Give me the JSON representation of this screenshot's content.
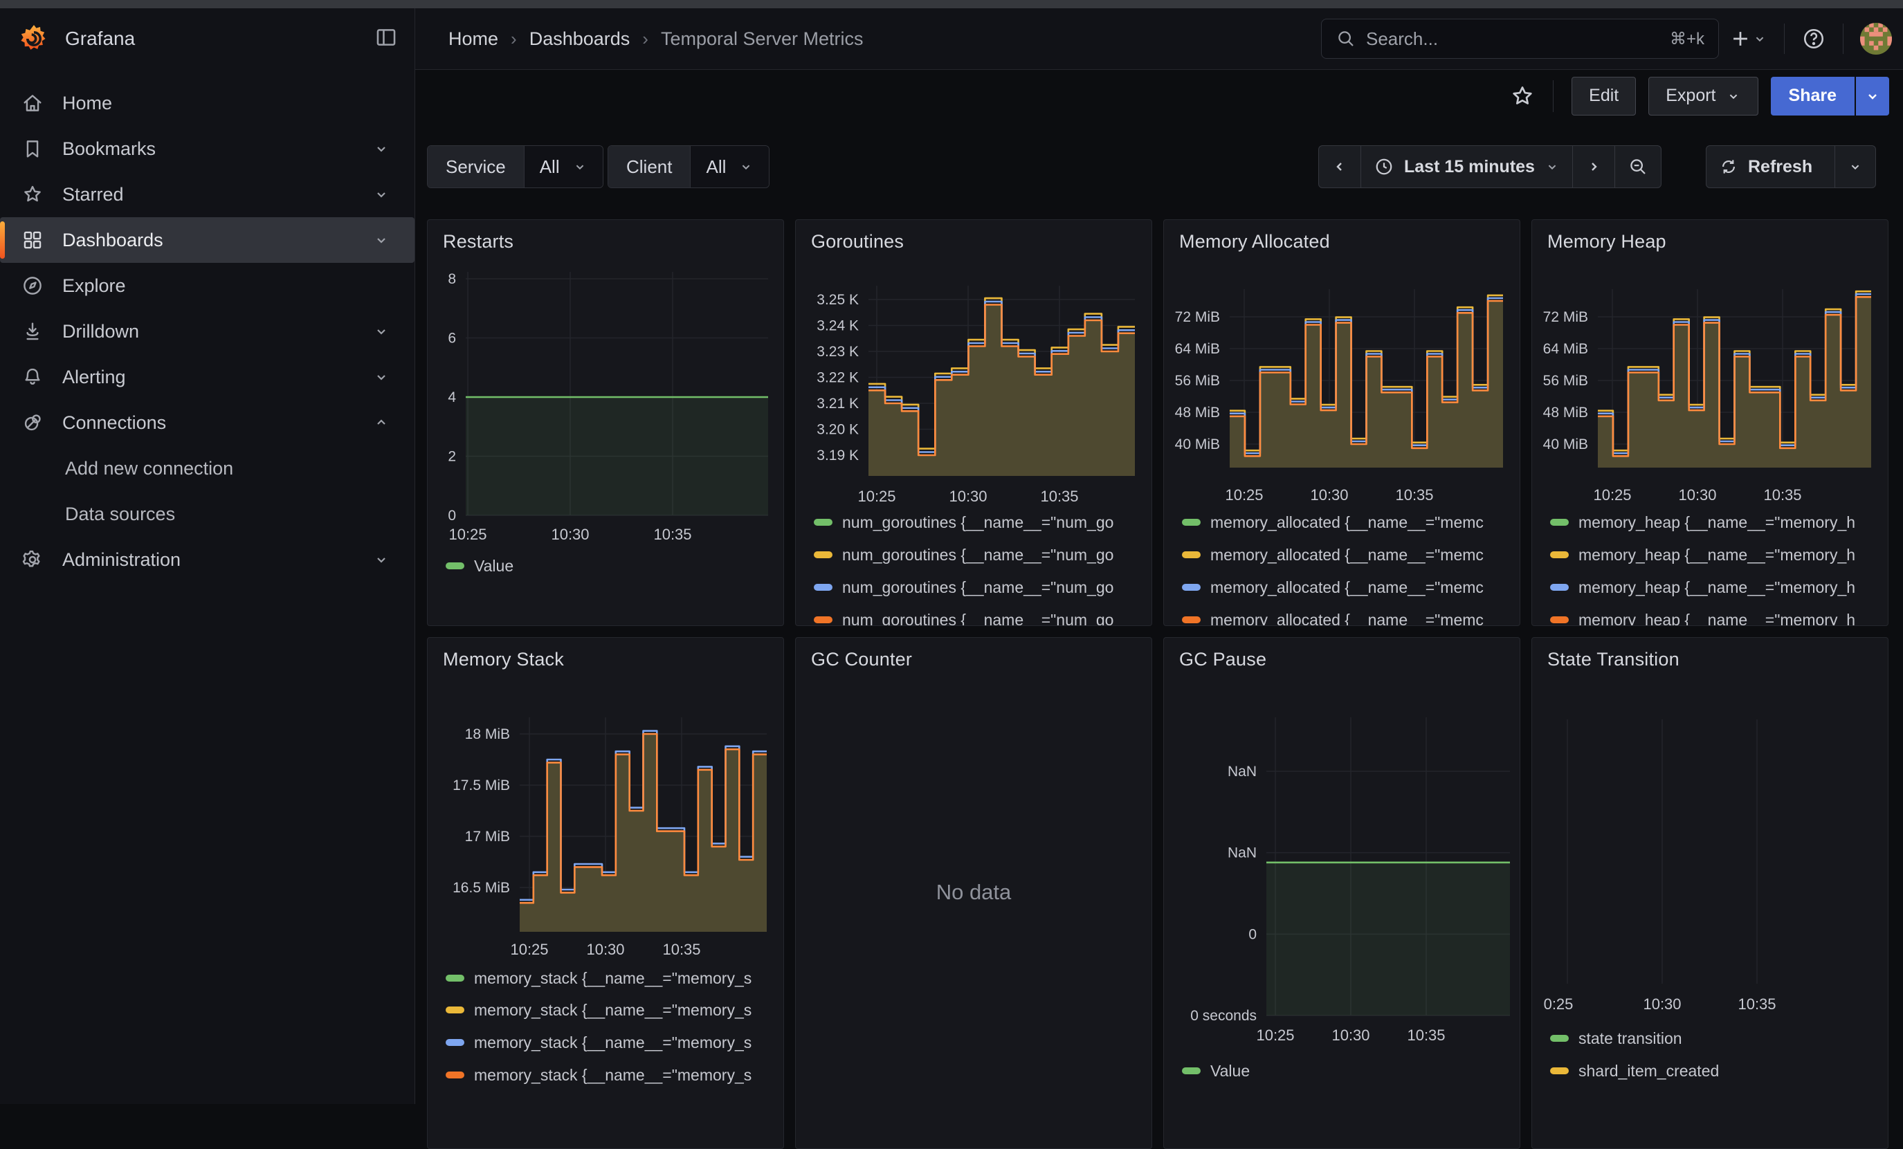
{
  "header": {
    "brand": "Grafana",
    "breadcrumb": [
      "Home",
      "Dashboards",
      "Temporal Server Metrics"
    ],
    "search": {
      "placeholder": "Search...",
      "shortcut": "⌘+k"
    },
    "icons": [
      "grafana-logo",
      "panel-toggle-icon",
      "search-icon",
      "plus-icon",
      "help-icon",
      "avatar"
    ]
  },
  "toolbar": {
    "edit": "Edit",
    "export": "Export",
    "share": "Share"
  },
  "sidebar": {
    "items": [
      {
        "label": "Home",
        "icon": "home-icon"
      },
      {
        "label": "Bookmarks",
        "icon": "bookmark-icon",
        "chevron": "down"
      },
      {
        "label": "Starred",
        "icon": "star-icon",
        "chevron": "down"
      },
      {
        "label": "Dashboards",
        "icon": "apps-icon",
        "chevron": "down",
        "active": true
      },
      {
        "label": "Explore",
        "icon": "compass-icon"
      },
      {
        "label": "Drilldown",
        "icon": "drilldown-icon",
        "chevron": "down"
      },
      {
        "label": "Alerting",
        "icon": "bell-icon",
        "chevron": "down"
      },
      {
        "label": "Connections",
        "icon": "connections-icon",
        "chevron": "up"
      },
      {
        "label": "Add new connection",
        "indent": true
      },
      {
        "label": "Data sources",
        "indent": true
      },
      {
        "label": "Administration",
        "icon": "gear-icon",
        "chevron": "down"
      }
    ]
  },
  "filters": [
    {
      "label": "Service",
      "value": "All"
    },
    {
      "label": "Client",
      "value": "All"
    }
  ],
  "timebar": {
    "range": "Last 15 minutes",
    "refresh": "Refresh"
  },
  "colors": {
    "green": "#73BF69",
    "yellow": "#EAB839",
    "blue": "#7EA6F0",
    "orange_line": "#FF8B3E",
    "orange_legend": "#F07427",
    "olive_fill": "#4E4930",
    "green_fill": "rgba(115,191,105,0.10)",
    "accent_blue": "#4669D2"
  },
  "panels": [
    {
      "id": "restarts",
      "title": "Restarts",
      "col": 0,
      "row": 0,
      "chart_data": {
        "type": "area",
        "title": "Restarts",
        "ylim": [
          0,
          8
        ],
        "x_ticks": [
          "10:25",
          "10:30",
          "10:35"
        ],
        "y_ticks": [
          {
            "v": 8,
            "label": "8"
          },
          {
            "v": 6,
            "label": "6"
          },
          {
            "v": 4,
            "label": "4"
          },
          {
            "v": 2,
            "label": "2"
          },
          {
            "v": 0,
            "label": "0"
          }
        ],
        "flat_value": 4,
        "series": [
          {
            "name": "Value",
            "color": "#73BF69"
          }
        ]
      },
      "legend": [
        {
          "color": "#73BF69",
          "label": "Value"
        }
      ]
    },
    {
      "id": "goroutines",
      "title": "Goroutines",
      "col": 1,
      "row": 0,
      "chart_data": {
        "type": "area-steps",
        "title": "Goroutines",
        "ylim": [
          3.185,
          3.255
        ],
        "x_ticks": [
          "10:25",
          "10:30",
          "10:35"
        ],
        "y_ticks": [
          {
            "v": 3.25,
            "label": "3.25 K"
          },
          {
            "v": 3.24,
            "label": "3.24 K"
          },
          {
            "v": 3.23,
            "label": "3.23 K"
          },
          {
            "v": 3.22,
            "label": "3.22 K"
          },
          {
            "v": 3.21,
            "label": "3.21 K"
          },
          {
            "v": 3.2,
            "label": "3.20 K"
          },
          {
            "v": 3.19,
            "label": "3.19 K"
          }
        ],
        "steps": [
          3.215,
          3.21,
          3.207,
          3.19,
          3.219,
          3.221,
          3.232,
          3.248,
          3.232,
          3.228,
          3.221,
          3.229,
          3.236,
          3.242,
          3.23,
          3.237
        ],
        "lines": [
          {
            "color": "#EAB839",
            "offset": 0.0025
          },
          {
            "color": "#7EA6F0",
            "offset": 0.0012
          },
          {
            "color": "#FF8B3E",
            "offset": 0
          }
        ],
        "fill": "#4E4930"
      },
      "legend": [
        {
          "color": "#73BF69",
          "label": "num_goroutines {__name__=\"num_go"
        },
        {
          "color": "#EAB839",
          "label": "num_goroutines {__name__=\"num_go"
        },
        {
          "color": "#7EA6F0",
          "label": "num_goroutines {__name__=\"num_go"
        },
        {
          "color": "#F07427",
          "label": "num_goroutines {__name__=\"num_go"
        }
      ]
    },
    {
      "id": "memalloc",
      "title": "Memory Allocated",
      "col": 2,
      "row": 0,
      "chart_data": {
        "type": "area-steps",
        "title": "Memory Allocated",
        "ylim": [
          34,
          78
        ],
        "ylabel": "MiB",
        "x_ticks": [
          "10:25",
          "10:30",
          "10:35"
        ],
        "y_ticks": [
          {
            "v": 72,
            "label": "72 MiB"
          },
          {
            "v": 64,
            "label": "64 MiB"
          },
          {
            "v": 56,
            "label": "56 MiB"
          },
          {
            "v": 48,
            "label": "48 MiB"
          },
          {
            "v": 40,
            "label": "40 MiB"
          }
        ],
        "steps": [
          47,
          37,
          58,
          58,
          50,
          70,
          48.5,
          70.5,
          40,
          62,
          53,
          53,
          39,
          62,
          50.5,
          73,
          53.5,
          76
        ],
        "lines": [
          {
            "color": "#EAB839",
            "offset": 1.4
          },
          {
            "color": "#7EA6F0",
            "offset": 0.7
          },
          {
            "color": "#FF8B3E",
            "offset": 0
          }
        ],
        "fill": "#4E4930"
      },
      "legend": [
        {
          "color": "#73BF69",
          "label": "memory_allocated {__name__=\"memc"
        },
        {
          "color": "#EAB839",
          "label": "memory_allocated {__name__=\"memc"
        },
        {
          "color": "#7EA6F0",
          "label": "memory_allocated {__name__=\"memc"
        },
        {
          "color": "#F07427",
          "label": "memory_allocated {__name__=\"memc"
        }
      ]
    },
    {
      "id": "memheap",
      "title": "Memory Heap",
      "col": 3,
      "row": 0,
      "chart_data": {
        "type": "area-steps",
        "title": "Memory Heap",
        "ylim": [
          34,
          78
        ],
        "ylabel": "MiB",
        "x_ticks": [
          "10:25",
          "10:30",
          "10:35"
        ],
        "y_ticks": [
          {
            "v": 72,
            "label": "72 MiB"
          },
          {
            "v": 64,
            "label": "64 MiB"
          },
          {
            "v": 56,
            "label": "56 MiB"
          },
          {
            "v": 48,
            "label": "48 MiB"
          },
          {
            "v": 40,
            "label": "40 MiB"
          }
        ],
        "steps": [
          47,
          37,
          58,
          58,
          51,
          70,
          48.5,
          70.5,
          40,
          62,
          53,
          53,
          39,
          62,
          51,
          72.5,
          53.5,
          77
        ],
        "lines": [
          {
            "color": "#EAB839",
            "offset": 1.4
          },
          {
            "color": "#7EA6F0",
            "offset": 0.7
          },
          {
            "color": "#FF8B3E",
            "offset": 0
          }
        ],
        "fill": "#4E4930"
      },
      "legend": [
        {
          "color": "#73BF69",
          "label": "memory_heap {__name__=\"memory_h"
        },
        {
          "color": "#EAB839",
          "label": "memory_heap {__name__=\"memory_h"
        },
        {
          "color": "#7EA6F0",
          "label": "memory_heap {__name__=\"memory_h"
        },
        {
          "color": "#F07427",
          "label": "memory_heap {__name__=\"memory_h"
        }
      ]
    },
    {
      "id": "memstack",
      "title": "Memory Stack",
      "col": 0,
      "row": 1,
      "chart_data": {
        "type": "area-steps",
        "title": "Memory Stack",
        "ylim": [
          16.2,
          18.1
        ],
        "ylabel": "MiB",
        "x_ticks": [
          "10:25",
          "10:30",
          "10:35"
        ],
        "y_ticks": [
          {
            "v": 18,
            "label": "18 MiB"
          },
          {
            "v": 17.5,
            "label": "17.5 MiB"
          },
          {
            "v": 17,
            "label": "17 MiB"
          },
          {
            "v": 16.5,
            "label": "16.5 MiB"
          }
        ],
        "steps": [
          16.35,
          16.62,
          17.72,
          16.45,
          16.7,
          16.7,
          16.62,
          17.8,
          17.25,
          18.0,
          17.05,
          17.05,
          16.62,
          17.65,
          16.9,
          17.85,
          16.77,
          17.8
        ],
        "lines": [
          {
            "color": "#7EA6F0",
            "offset": 0.03
          },
          {
            "color": "#FF8B3E",
            "offset": 0
          }
        ],
        "fill": "#4E4930"
      },
      "legend": [
        {
          "color": "#73BF69",
          "label": "memory_stack {__name__=\"memory_s"
        },
        {
          "color": "#EAB839",
          "label": "memory_stack {__name__=\"memory_s"
        },
        {
          "color": "#7EA6F0",
          "label": "memory_stack {__name__=\"memory_s"
        },
        {
          "color": "#F07427",
          "label": "memory_stack {__name__=\"memory_s"
        }
      ]
    },
    {
      "id": "gccounter",
      "title": "GC Counter",
      "col": 1,
      "row": 1,
      "chart_data": {
        "type": "no_data",
        "title": "GC Counter",
        "message": "No data"
      },
      "message": "No data",
      "legend": []
    },
    {
      "id": "gcpause",
      "title": "GC Pause",
      "col": 2,
      "row": 1,
      "chart_data": {
        "type": "area",
        "title": "GC Pause",
        "ylabel": "seconds",
        "x_ticks": [
          "10:25",
          "10:30",
          "10:35"
        ],
        "y_ticks": [
          {
            "v": 3,
            "label": "NaN"
          },
          {
            "v": 2,
            "label": "NaN"
          },
          {
            "v": 1,
            "label": "0"
          },
          {
            "v": 0,
            "label": "0 seconds"
          }
        ],
        "flat_value": 1.88,
        "series": [
          {
            "name": "Value",
            "color": "#73BF69"
          }
        ]
      },
      "legend": [
        {
          "color": "#73BF69",
          "label": "Value"
        }
      ]
    },
    {
      "id": "state",
      "title": "State Transition",
      "col": 3,
      "row": 1,
      "chart_data": {
        "type": "grid-only",
        "title": "State Transition",
        "x_ticks": [
          "0:25",
          "10:30",
          "10:35"
        ],
        "series": [
          {
            "name": "state transition",
            "color": "#73BF69"
          },
          {
            "name": "shard_item_created",
            "color": "#EAB839"
          }
        ]
      },
      "legend": [
        {
          "color": "#73BF69",
          "label": "state transition"
        },
        {
          "color": "#EAB839",
          "label": "shard_item_created"
        }
      ]
    }
  ]
}
